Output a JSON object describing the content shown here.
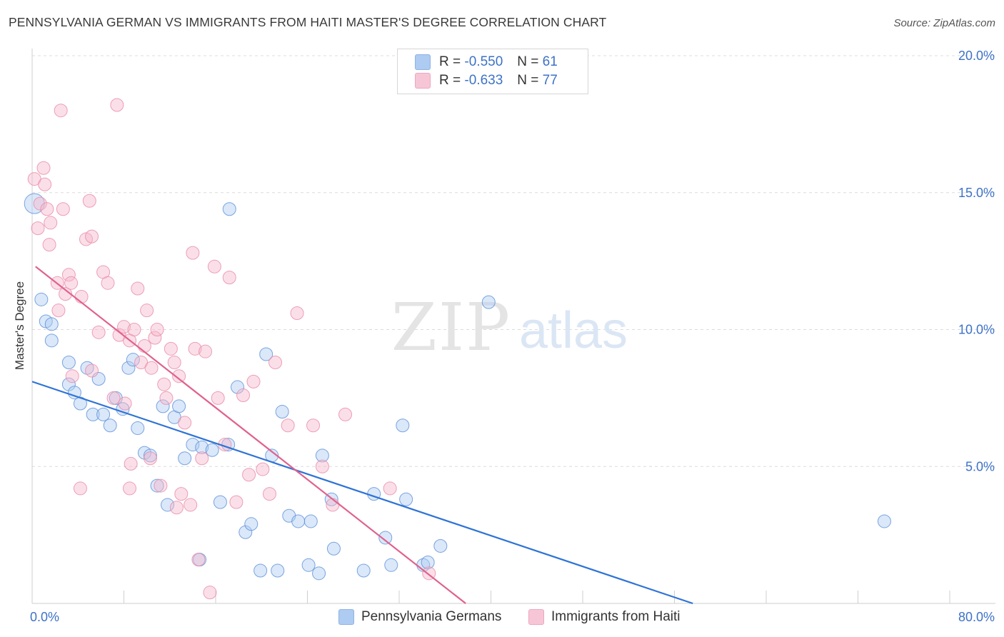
{
  "header": {
    "title": "PENNSYLVANIA GERMAN VS IMMIGRANTS FROM HAITI MASTER'S DEGREE CORRELATION CHART",
    "source": "Source: ZipAtlas.com"
  },
  "watermark": {
    "zip": "ZIP",
    "atlas": "atlas"
  },
  "legend": {
    "rows": [
      {
        "r_label": "R =",
        "r_value": "-0.550",
        "n_label": "N =",
        "n_value": "61",
        "color": "#aecbf2"
      },
      {
        "r_label": "R =",
        "r_value": "-0.633",
        "n_label": "N =",
        "n_value": "77",
        "color": "#f7b9cc"
      }
    ]
  },
  "bottom_legend": {
    "items": [
      {
        "label": "Pennsylvania Germans",
        "color": "#aecbf2"
      },
      {
        "label": "Immigrants from Haiti",
        "color": "#f7b9cc"
      }
    ]
  },
  "chart_data": {
    "type": "scatter",
    "title": "PENNSYLVANIA GERMAN VS IMMIGRANTS FROM HAITI MASTER'S DEGREE CORRELATION CHART",
    "xlabel": "",
    "ylabel": "Master's Degree",
    "xlim": [
      0,
      80
    ],
    "ylim": [
      0,
      20
    ],
    "x_tick_labels": [
      "0.0%",
      "80.0%"
    ],
    "y_ticks": [
      5,
      10,
      15,
      20
    ],
    "y_tick_labels": [
      "5.0%",
      "10.0%",
      "15.0%",
      "20.0%"
    ],
    "grid": true,
    "legend_position": "top-center",
    "series": [
      {
        "name": "Pennsylvania Germans",
        "color": "#5b8fd9",
        "fill": "#aecbf2",
        "trendline": {
          "x": [
            0,
            57.6
          ],
          "y": [
            8.1,
            0.0
          ],
          "color": "#2f73d6"
        },
        "points": [
          [
            0.2,
            14.6
          ],
          [
            0.8,
            11.1
          ],
          [
            1.2,
            10.3
          ],
          [
            1.7,
            10.2
          ],
          [
            1.7,
            9.6
          ],
          [
            3.2,
            8.0
          ],
          [
            3.2,
            8.8
          ],
          [
            3.7,
            7.7
          ],
          [
            4.2,
            7.3
          ],
          [
            4.8,
            8.6
          ],
          [
            5.3,
            6.9
          ],
          [
            5.8,
            8.2
          ],
          [
            6.2,
            6.9
          ],
          [
            6.8,
            6.5
          ],
          [
            7.3,
            7.5
          ],
          [
            7.9,
            7.1
          ],
          [
            8.4,
            8.6
          ],
          [
            8.8,
            8.9
          ],
          [
            9.2,
            6.4
          ],
          [
            9.8,
            5.5
          ],
          [
            10.3,
            5.4
          ],
          [
            10.9,
            4.3
          ],
          [
            11.4,
            7.2
          ],
          [
            11.8,
            3.6
          ],
          [
            12.4,
            6.8
          ],
          [
            12.8,
            7.2
          ],
          [
            13.3,
            5.3
          ],
          [
            14.0,
            5.8
          ],
          [
            14.6,
            1.6
          ],
          [
            14.8,
            5.7
          ],
          [
            15.7,
            5.6
          ],
          [
            16.4,
            3.7
          ],
          [
            17.1,
            5.8
          ],
          [
            17.2,
            14.4
          ],
          [
            17.9,
            7.9
          ],
          [
            18.6,
            2.6
          ],
          [
            19.1,
            2.9
          ],
          [
            19.9,
            1.2
          ],
          [
            20.4,
            9.1
          ],
          [
            20.9,
            5.4
          ],
          [
            21.4,
            1.2
          ],
          [
            21.8,
            7.0
          ],
          [
            22.4,
            3.2
          ],
          [
            23.2,
            3.0
          ],
          [
            24.1,
            1.4
          ],
          [
            24.3,
            3.0
          ],
          [
            25.0,
            1.1
          ],
          [
            25.3,
            5.4
          ],
          [
            26.1,
            3.8
          ],
          [
            26.3,
            2.0
          ],
          [
            28.9,
            1.2
          ],
          [
            29.8,
            4.0
          ],
          [
            30.8,
            2.4
          ],
          [
            31.3,
            1.4
          ],
          [
            32.3,
            6.5
          ],
          [
            32.6,
            3.8
          ],
          [
            34.1,
            1.4
          ],
          [
            34.5,
            1.5
          ],
          [
            35.6,
            2.1
          ],
          [
            39.8,
            11.0
          ],
          [
            74.3,
            3.0
          ]
        ]
      },
      {
        "name": "Immigrants from Haiti",
        "color": "#e88aa6",
        "fill": "#f7b9cc",
        "trendline": {
          "x": [
            0.3,
            37.8
          ],
          "y": [
            12.3,
            0.0
          ],
          "color": "#e0628e"
        },
        "points": [
          [
            0.2,
            15.5
          ],
          [
            0.5,
            13.7
          ],
          [
            0.7,
            14.6
          ],
          [
            1.0,
            15.9
          ],
          [
            1.1,
            15.3
          ],
          [
            1.3,
            14.4
          ],
          [
            1.5,
            13.1
          ],
          [
            1.6,
            13.9
          ],
          [
            2.2,
            11.7
          ],
          [
            2.3,
            10.7
          ],
          [
            2.5,
            18.0
          ],
          [
            2.7,
            14.4
          ],
          [
            2.9,
            11.3
          ],
          [
            3.2,
            12.0
          ],
          [
            3.4,
            11.7
          ],
          [
            3.5,
            8.3
          ],
          [
            4.3,
            11.2
          ],
          [
            4.7,
            13.3
          ],
          [
            5.0,
            14.7
          ],
          [
            5.2,
            13.4
          ],
          [
            5.2,
            8.5
          ],
          [
            5.8,
            9.9
          ],
          [
            6.2,
            12.1
          ],
          [
            6.6,
            11.7
          ],
          [
            7.1,
            7.5
          ],
          [
            7.4,
            18.2
          ],
          [
            7.6,
            9.8
          ],
          [
            8.0,
            10.1
          ],
          [
            8.1,
            7.3
          ],
          [
            8.5,
            9.6
          ],
          [
            8.6,
            5.1
          ],
          [
            8.9,
            10.0
          ],
          [
            9.2,
            11.5
          ],
          [
            9.5,
            8.8
          ],
          [
            9.8,
            9.4
          ],
          [
            10.0,
            10.7
          ],
          [
            10.3,
            5.3
          ],
          [
            10.4,
            8.6
          ],
          [
            10.7,
            9.7
          ],
          [
            10.9,
            10.0
          ],
          [
            11.2,
            4.3
          ],
          [
            11.5,
            8.0
          ],
          [
            11.7,
            7.5
          ],
          [
            12.1,
            9.3
          ],
          [
            12.4,
            8.8
          ],
          [
            12.6,
            3.5
          ],
          [
            12.8,
            8.3
          ],
          [
            13.0,
            4.0
          ],
          [
            13.3,
            6.6
          ],
          [
            13.8,
            3.6
          ],
          [
            14.0,
            12.8
          ],
          [
            14.2,
            9.3
          ],
          [
            14.5,
            1.6
          ],
          [
            14.8,
            5.3
          ],
          [
            15.1,
            9.2
          ],
          [
            15.5,
            0.4
          ],
          [
            15.9,
            12.3
          ],
          [
            16.2,
            7.5
          ],
          [
            16.8,
            5.8
          ],
          [
            17.2,
            11.9
          ],
          [
            17.8,
            3.7
          ],
          [
            18.4,
            7.6
          ],
          [
            18.9,
            4.7
          ],
          [
            19.3,
            8.1
          ],
          [
            20.1,
            4.9
          ],
          [
            20.7,
            4.0
          ],
          [
            21.2,
            8.8
          ],
          [
            22.3,
            6.5
          ],
          [
            23.1,
            10.6
          ],
          [
            24.5,
            6.5
          ],
          [
            25.3,
            5.0
          ],
          [
            26.2,
            3.6
          ],
          [
            27.3,
            6.9
          ],
          [
            31.2,
            4.2
          ],
          [
            34.6,
            1.1
          ],
          [
            4.2,
            4.2
          ],
          [
            8.5,
            4.2
          ]
        ]
      }
    ]
  }
}
